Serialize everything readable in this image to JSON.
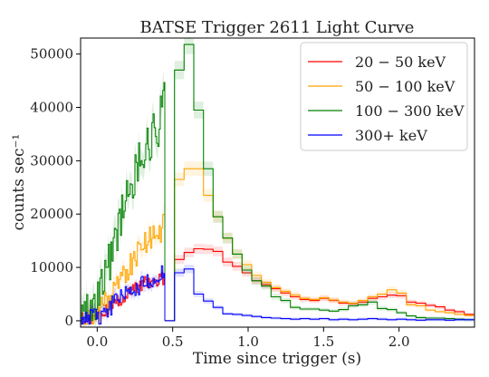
{
  "chart_data": {
    "type": "line",
    "title": "BATSE Trigger 2611 Light Curve",
    "xlabel": "Time since trigger (s)",
    "ylabel": "counts sec⁻¹",
    "xlim": [
      -0.11,
      2.5
    ],
    "ylim": [
      -1200,
      53000
    ],
    "xticks": [
      0.0,
      0.5,
      1.0,
      1.5,
      2.0
    ],
    "xtick_labels": [
      "0.0",
      "0.5",
      "1.0",
      "1.5",
      "2.0"
    ],
    "yticks": [
      0,
      10000,
      20000,
      30000,
      40000,
      50000
    ],
    "ytick_labels": [
      "0",
      "10000",
      "20000",
      "30000",
      "40000",
      "50000"
    ],
    "legend_position": "top-right",
    "hires_end": 0.448,
    "gap_end": 0.512,
    "hires_step": 0.008,
    "series": [
      {
        "name": "20 − 50 keV",
        "color": "#ff0000",
        "fast_anchors": [
          [
            -0.11,
            500
          ],
          [
            0.0,
            800
          ],
          [
            0.1,
            3000
          ],
          [
            0.2,
            5000
          ],
          [
            0.3,
            7000
          ],
          [
            0.448,
            8000
          ]
        ],
        "fast_noise": 1200,
        "steps": [
          [
            0.512,
            11500
          ],
          [
            0.576,
            12800
          ],
          [
            0.64,
            13500
          ],
          [
            0.704,
            13400
          ],
          [
            0.768,
            13000
          ],
          [
            0.832,
            11000
          ],
          [
            0.896,
            10200
          ],
          [
            0.96,
            9000
          ],
          [
            1.024,
            7500
          ],
          [
            1.088,
            6800
          ],
          [
            1.152,
            6000
          ],
          [
            1.216,
            5200
          ],
          [
            1.28,
            4500
          ],
          [
            1.344,
            4000
          ],
          [
            1.408,
            3800
          ],
          [
            1.472,
            4200
          ],
          [
            1.536,
            3800
          ],
          [
            1.6,
            3300
          ],
          [
            1.664,
            3200
          ],
          [
            1.728,
            3500
          ],
          [
            1.792,
            4200
          ],
          [
            1.856,
            4500
          ],
          [
            1.92,
            4800
          ],
          [
            1.984,
            4700
          ],
          [
            2.048,
            3500
          ],
          [
            2.112,
            3300
          ],
          [
            2.176,
            2900
          ],
          [
            2.24,
            2600
          ],
          [
            2.304,
            2000
          ],
          [
            2.368,
            1700
          ],
          [
            2.432,
            1200
          ]
        ]
      },
      {
        "name": "50 − 100 keV",
        "color": "#ffa500",
        "fast_anchors": [
          [
            -0.11,
            500
          ],
          [
            0.0,
            1000
          ],
          [
            0.1,
            5000
          ],
          [
            0.2,
            10000
          ],
          [
            0.3,
            14000
          ],
          [
            0.448,
            18000
          ]
        ],
        "fast_noise": 2500,
        "steps": [
          [
            0.512,
            26500
          ],
          [
            0.576,
            28500
          ],
          [
            0.64,
            28500
          ],
          [
            0.704,
            23500
          ],
          [
            0.768,
            19500
          ],
          [
            0.832,
            15500
          ],
          [
            0.896,
            12500
          ],
          [
            0.96,
            10500
          ],
          [
            1.024,
            8500
          ],
          [
            1.088,
            7200
          ],
          [
            1.152,
            6200
          ],
          [
            1.216,
            5500
          ],
          [
            1.28,
            4800
          ],
          [
            1.344,
            4200
          ],
          [
            1.408,
            4000
          ],
          [
            1.472,
            4300
          ],
          [
            1.536,
            3900
          ],
          [
            1.6,
            3500
          ],
          [
            1.664,
            3300
          ],
          [
            1.728,
            3800
          ],
          [
            1.792,
            4500
          ],
          [
            1.856,
            5000
          ],
          [
            1.92,
            5800
          ],
          [
            1.984,
            5200
          ],
          [
            2.048,
            3000
          ],
          [
            2.112,
            2800
          ],
          [
            2.176,
            2000
          ],
          [
            2.24,
            1700
          ],
          [
            2.304,
            1500
          ],
          [
            2.368,
            1200
          ],
          [
            2.432,
            1000
          ]
        ]
      },
      {
        "name": "100 − 300 keV",
        "color": "#008000",
        "fast_anchors": [
          [
            -0.11,
            500
          ],
          [
            -0.02,
            2000
          ],
          [
            0.05,
            9000
          ],
          [
            0.1,
            13000
          ],
          [
            0.2,
            24000
          ],
          [
            0.3,
            32000
          ],
          [
            0.4,
            36000
          ],
          [
            0.448,
            42000
          ]
        ],
        "fast_noise": 4000,
        "steps": [
          [
            0.512,
            47000
          ],
          [
            0.576,
            51800
          ],
          [
            0.64,
            39500
          ],
          [
            0.704,
            28500
          ],
          [
            0.768,
            19500
          ],
          [
            0.832,
            15500
          ],
          [
            0.896,
            12500
          ],
          [
            0.96,
            9500
          ],
          [
            1.024,
            7500
          ],
          [
            1.088,
            6500
          ],
          [
            1.152,
            4500
          ],
          [
            1.216,
            3800
          ],
          [
            1.28,
            2500
          ],
          [
            1.344,
            2200
          ],
          [
            1.408,
            2200
          ],
          [
            1.472,
            2000
          ],
          [
            1.536,
            1800
          ],
          [
            1.6,
            2100
          ],
          [
            1.664,
            2800
          ],
          [
            1.728,
            3000
          ],
          [
            1.792,
            3500
          ],
          [
            1.856,
            2300
          ],
          [
            1.92,
            2100
          ],
          [
            1.984,
            1500
          ],
          [
            2.048,
            900
          ],
          [
            2.112,
            600
          ],
          [
            2.176,
            500
          ],
          [
            2.24,
            500
          ],
          [
            2.304,
            400
          ],
          [
            2.368,
            300
          ],
          [
            2.432,
            200
          ]
        ]
      },
      {
        "name": "300+ keV",
        "color": "#0000ff",
        "fast_anchors": [
          [
            -0.11,
            200
          ],
          [
            0.0,
            500
          ],
          [
            0.1,
            3000
          ],
          [
            0.2,
            5000
          ],
          [
            0.3,
            7000
          ],
          [
            0.448,
            9000
          ]
        ],
        "fast_noise": 1800,
        "steps": [
          [
            0.512,
            9000
          ],
          [
            0.576,
            9700
          ],
          [
            0.64,
            5000
          ],
          [
            0.704,
            3700
          ],
          [
            0.768,
            2500
          ],
          [
            0.832,
            1300
          ],
          [
            0.896,
            1200
          ],
          [
            0.96,
            1000
          ],
          [
            1.024,
            800
          ],
          [
            1.088,
            600
          ],
          [
            1.152,
            500
          ],
          [
            1.216,
            400
          ],
          [
            1.28,
            300
          ],
          [
            1.344,
            400
          ],
          [
            1.408,
            300
          ],
          [
            1.472,
            400
          ],
          [
            1.536,
            200
          ],
          [
            1.6,
            300
          ],
          [
            1.664,
            200
          ],
          [
            1.728,
            300
          ],
          [
            1.792,
            400
          ],
          [
            1.856,
            300
          ],
          [
            1.92,
            200
          ],
          [
            1.984,
            300
          ],
          [
            2.048,
            200
          ],
          [
            2.112,
            100
          ],
          [
            2.176,
            200
          ],
          [
            2.24,
            200
          ],
          [
            2.304,
            100
          ],
          [
            2.368,
            200
          ],
          [
            2.432,
            200
          ]
        ]
      }
    ]
  }
}
